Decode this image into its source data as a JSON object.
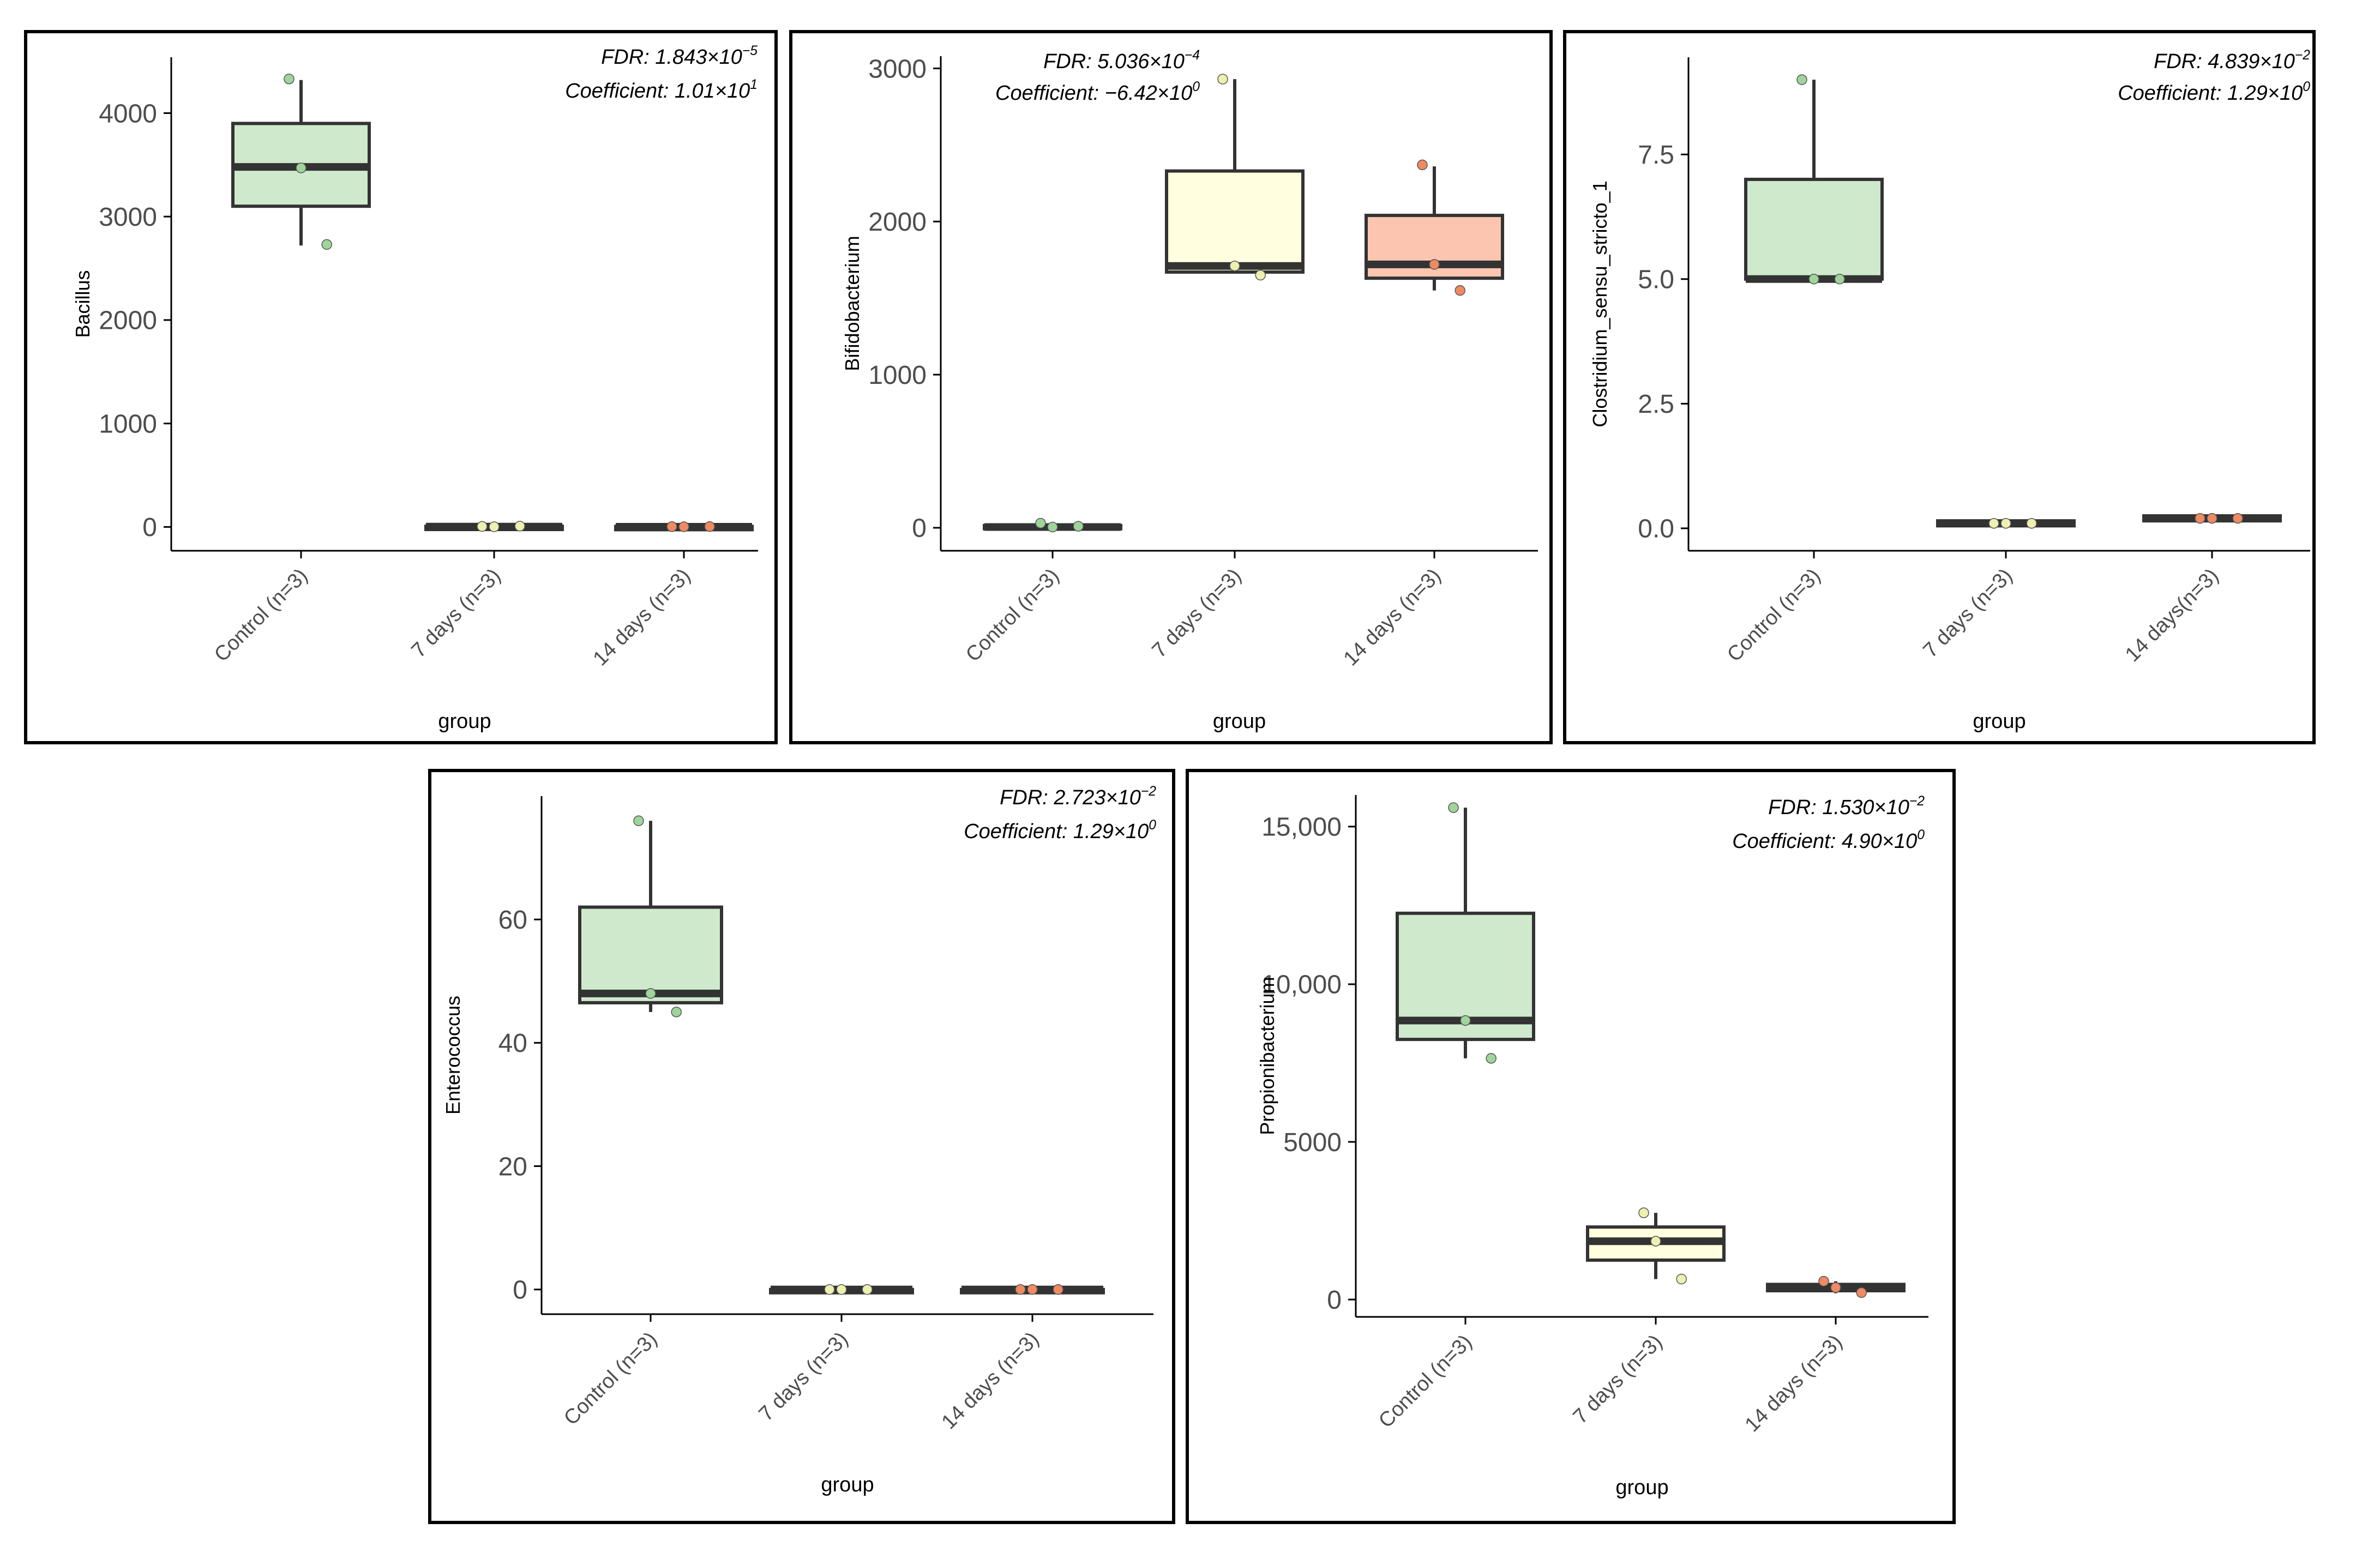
{
  "chart_data": [
    {
      "type": "box",
      "xlabel": "group",
      "ylabel": "Bacillus",
      "ylim": [
        -230,
        4540
      ],
      "yticks": [
        0,
        1000,
        2000,
        3000,
        4000
      ],
      "ytick_labels": [
        "0",
        "1000",
        "2000",
        "3000",
        "4000"
      ],
      "categories": [
        "Control (n=3)",
        "7 days (n=3)",
        "14 days (n=3)"
      ],
      "annotations": {
        "fdr_prefix": "FDR: 1.843×10",
        "fdr_exp": "−5",
        "coef_prefix": "Coefficient: 1.01×10",
        "coef_exp": "1"
      },
      "boxes": [
        {
          "group": "Control (n=3)",
          "min": 2720,
          "q1": 3100,
          "median": 3480,
          "q3": 3900,
          "max": 4320,
          "points": [
            4330,
            3470,
            2730
          ],
          "fill": "#cfe9cc",
          "point_color": "#9fd49b"
        },
        {
          "group": "7 days (n=3)",
          "min": 0,
          "q1": 0,
          "median": 3,
          "q3": 7,
          "max": 10,
          "points": [
            5,
            2,
            8
          ],
          "fill": "#ffffe0",
          "point_color": "#ecf0b0"
        },
        {
          "group": "14 days (n=3)",
          "min": 0,
          "q1": 0,
          "median": 2,
          "q3": 5,
          "max": 7,
          "points": [
            3,
            2,
            4
          ],
          "fill": "#fcc5b0",
          "point_color": "#ef8a62"
        }
      ]
    },
    {
      "type": "box",
      "xlabel": "group",
      "ylabel": "Bifidobacterium",
      "ylim": [
        -150,
        3080
      ],
      "yticks": [
        0,
        1000,
        2000,
        3000
      ],
      "ytick_labels": [
        "0",
        "1000",
        "2000",
        "3000"
      ],
      "categories": [
        "Control (n=3)",
        "7 days (n=3)",
        "14 days (n=3)"
      ],
      "annotations": {
        "fdr_prefix": "FDR: 5.036×10",
        "fdr_exp": "−4",
        "coef_prefix": "Coefficient: −6.42×10",
        "coef_exp": "0"
      },
      "boxes": [
        {
          "group": "Control (n=3)",
          "min": 0,
          "q1": 0,
          "median": 5,
          "q3": 15,
          "max": 25,
          "points": [
            30,
            5,
            10
          ],
          "fill": "#cfe9cc",
          "point_color": "#9fd49b"
        },
        {
          "group": "7 days (n=3)",
          "min": 1660,
          "q1": 1670,
          "median": 1710,
          "q3": 2330,
          "max": 2930,
          "points": [
            2930,
            1710,
            1650
          ],
          "fill": "#ffffe0",
          "point_color": "#ecf0b0"
        },
        {
          "group": "14 days (n=3)",
          "min": 1550,
          "q1": 1630,
          "median": 1720,
          "q3": 2040,
          "max": 2360,
          "points": [
            2370,
            1720,
            1550
          ],
          "fill": "#fcc5b0",
          "point_color": "#ef8a62"
        }
      ]
    },
    {
      "type": "box",
      "xlabel": "group",
      "ylabel": "Clostridium_sensu_stricto_1",
      "ylim": [
        -0.45,
        9.45
      ],
      "yticks": [
        0,
        2.5,
        5,
        7.5
      ],
      "ytick_labels": [
        "0.0",
        "2.5",
        "5.0",
        "7.5"
      ],
      "categories": [
        "Control (n=3)",
        "7 days (n=3)",
        "14 days(n=3)"
      ],
      "annotations": {
        "fdr_prefix": "FDR: 4.839×10",
        "fdr_exp": "−2",
        "coef_prefix": "Coefficient: 1.29×10",
        "coef_exp": "0"
      },
      "boxes": [
        {
          "group": "Control (n=3)",
          "min": 5.0,
          "q1": 5.0,
          "median": 5.0,
          "q3": 7.0,
          "max": 9.0,
          "points": [
            9.0,
            5.0,
            5.0
          ],
          "fill": "#cfe9cc",
          "point_color": "#9fd49b"
        },
        {
          "group": "7 days (n=3)",
          "min": 0.05,
          "q1": 0.05,
          "median": 0.1,
          "q3": 0.15,
          "max": 0.15,
          "points": [
            0.1,
            0.1,
            0.1
          ],
          "fill": "#ffffe0",
          "point_color": "#ecf0b0"
        },
        {
          "group": "14 days(n=3)",
          "min": 0.15,
          "q1": 0.15,
          "median": 0.2,
          "q3": 0.25,
          "max": 0.25,
          "points": [
            0.2,
            0.2,
            0.2
          ],
          "fill": "#fcc5b0",
          "point_color": "#ef8a62"
        }
      ]
    },
    {
      "type": "box",
      "xlabel": "group",
      "ylabel": "Enterococcus",
      "ylim": [
        -4,
        80
      ],
      "yticks": [
        0,
        20,
        40,
        60
      ],
      "ytick_labels": [
        "0",
        "20",
        "40",
        "60"
      ],
      "categories": [
        "Control (n=3)",
        "7 days (n=3)",
        "14 days (n=3)"
      ],
      "annotations": {
        "fdr_prefix": "FDR: 2.723×10",
        "fdr_exp": "−2",
        "coef_prefix": "Coefficient: 1.29×10",
        "coef_exp": "0"
      },
      "boxes": [
        {
          "group": "Control (n=3)",
          "min": 45,
          "q1": 46.5,
          "median": 48,
          "q3": 62,
          "max": 76,
          "points": [
            76,
            48,
            45
          ],
          "fill": "#cfe9cc",
          "point_color": "#9fd49b"
        },
        {
          "group": "7 days (n=3)",
          "min": 0,
          "q1": 0,
          "median": 0,
          "q3": 0,
          "max": 0,
          "points": [
            0,
            0,
            0
          ],
          "fill": "#ffffe0",
          "point_color": "#ecf0b0"
        },
        {
          "group": "14 days (n=3)",
          "min": 0,
          "q1": 0,
          "median": 0,
          "q3": 0,
          "max": 0,
          "points": [
            0,
            0,
            0
          ],
          "fill": "#fcc5b0",
          "point_color": "#ef8a62"
        }
      ]
    },
    {
      "type": "box",
      "xlabel": "group",
      "ylabel": "Propionibacterium",
      "ylim": [
        -550,
        16000
      ],
      "yticks": [
        0,
        5000,
        10000,
        15000
      ],
      "ytick_labels": [
        "0",
        "5000",
        "10,000",
        "15,000"
      ],
      "categories": [
        "Control (n=3)",
        "7 days (n=3)",
        "14 days (n=3)"
      ],
      "annotations": {
        "fdr_prefix": "FDR: 1.530×10",
        "fdr_exp": "−2",
        "coef_prefix": "Coefficient: 4.90×10",
        "coef_exp": "0"
      },
      "boxes": [
        {
          "group": "Control (n=3)",
          "min": 7650,
          "q1": 8250,
          "median": 8850,
          "q3": 12250,
          "max": 15600,
          "points": [
            15600,
            8850,
            7650
          ],
          "fill": "#cfe9cc",
          "point_color": "#9fd49b"
        },
        {
          "group": "7 days (n=3)",
          "min": 650,
          "q1": 1250,
          "median": 1850,
          "q3": 2300,
          "max": 2750,
          "points": [
            2750,
            1850,
            650
          ],
          "fill": "#ffffe0",
          "point_color": "#ecf0b0"
        },
        {
          "group": "14 days (n=3)",
          "min": 200,
          "q1": 280,
          "median": 380,
          "q3": 480,
          "max": 580,
          "points": [
            580,
            380,
            220
          ],
          "fill": "#fcc5b0",
          "point_color": "#ef8a62"
        }
      ]
    }
  ]
}
